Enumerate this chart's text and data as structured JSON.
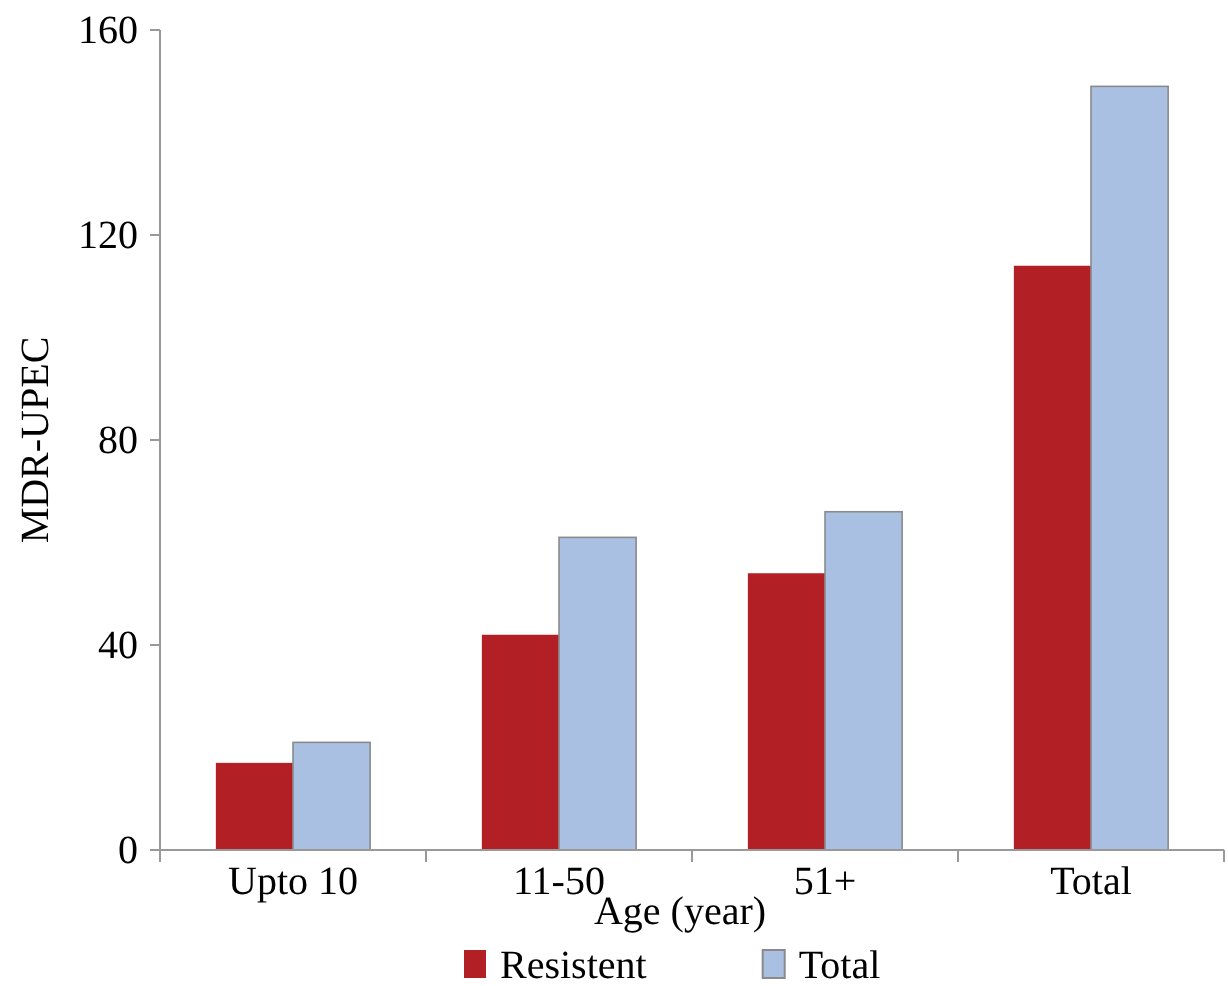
{
  "chart_data": {
    "type": "bar",
    "xlabel": "Age (year)",
    "ylabel": "MDR-UPEC",
    "categories": [
      "Upto 10",
      "11-50",
      "51+",
      "Total"
    ],
    "series": [
      {
        "name": "Resistent",
        "color": "#b22025",
        "values": [
          17,
          42,
          54,
          114
        ]
      },
      {
        "name": "Total",
        "color": "#aac0e2",
        "values": [
          21,
          61,
          66,
          149
        ]
      }
    ],
    "ylim": [
      0,
      160
    ],
    "yticks": [
      0,
      40,
      80,
      120,
      160
    ],
    "grid": false,
    "legend": "bottom"
  }
}
